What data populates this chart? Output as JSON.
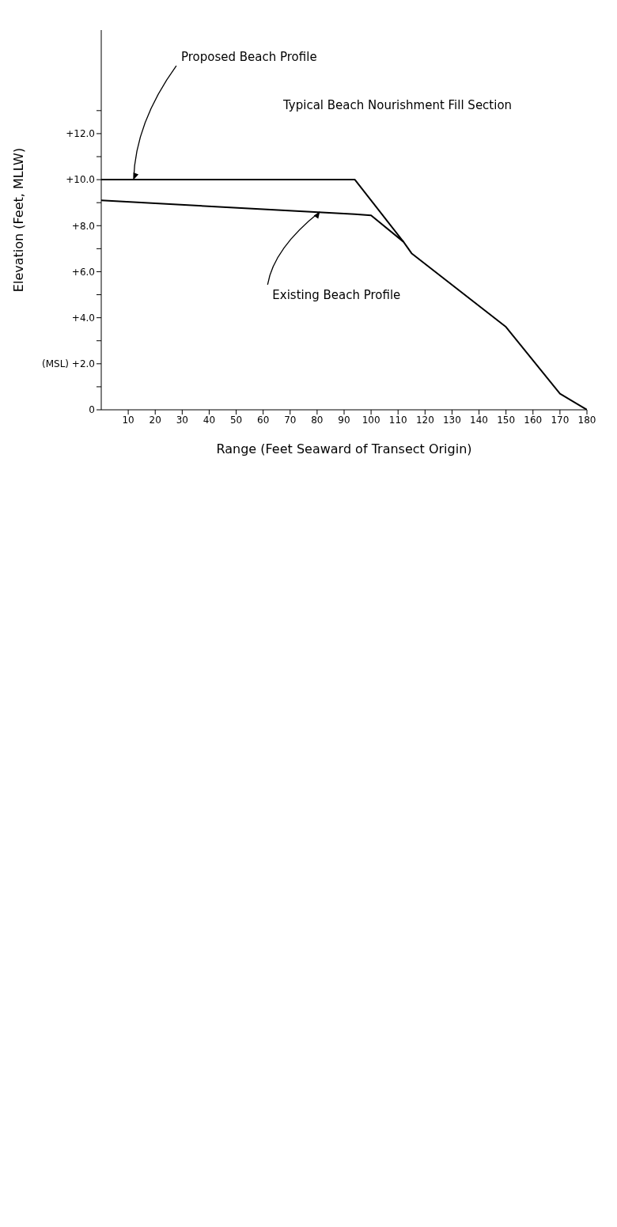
{
  "chart_data": {
    "type": "line",
    "xlabel": "Range (Feet Seaward of Transect Origin)",
    "ylabel": "Elevation (Feet, MLLW)",
    "xlim": [
      0,
      180
    ],
    "xticks": [
      10,
      20,
      30,
      40,
      50,
      60,
      70,
      80,
      90,
      100,
      110,
      120,
      130,
      140,
      150,
      160,
      170,
      180
    ],
    "ylim": [
      0,
      16.5
    ],
    "yticks": [
      {
        "value": 0,
        "label": "0"
      },
      {
        "value": 1,
        "label": null
      },
      {
        "value": 2,
        "label": "(MSL) +2.0"
      },
      {
        "value": 3,
        "label": null
      },
      {
        "value": 4,
        "label": "+4.0"
      },
      {
        "value": 5,
        "label": null
      },
      {
        "value": 6,
        "label": "+6.0"
      },
      {
        "value": 7,
        "label": null
      },
      {
        "value": 8,
        "label": "+8.0"
      },
      {
        "value": 9,
        "label": null
      },
      {
        "value": 10,
        "label": "+10.0"
      },
      {
        "value": 11,
        "label": null
      },
      {
        "value": 12,
        "label": "+12.0"
      },
      {
        "value": 13,
        "label": null
      }
    ],
    "series": [
      {
        "color": "#000000",
        "x": [
          0,
          94,
          112
        ],
        "values": [
          10,
          10,
          7.3
        ]
      },
      {
        "color": "#000000",
        "x": [
          0,
          94,
          100,
          112,
          115,
          150,
          170,
          180
        ],
        "values": [
          9.1,
          8.5,
          8.45,
          7.3,
          6.8,
          3.6,
          0.7,
          0
        ]
      }
    ],
    "annotations": [
      {
        "text": "Proposed Beach Profile",
        "x": 12,
        "y": 10
      },
      "Typical Beach Nourishment Fill Section",
      {
        "text": "Existing Beach Profile",
        "x": 81,
        "y": 8.6
      }
    ],
    "grid": false,
    "marker": "none",
    "line_style": "solid"
  }
}
